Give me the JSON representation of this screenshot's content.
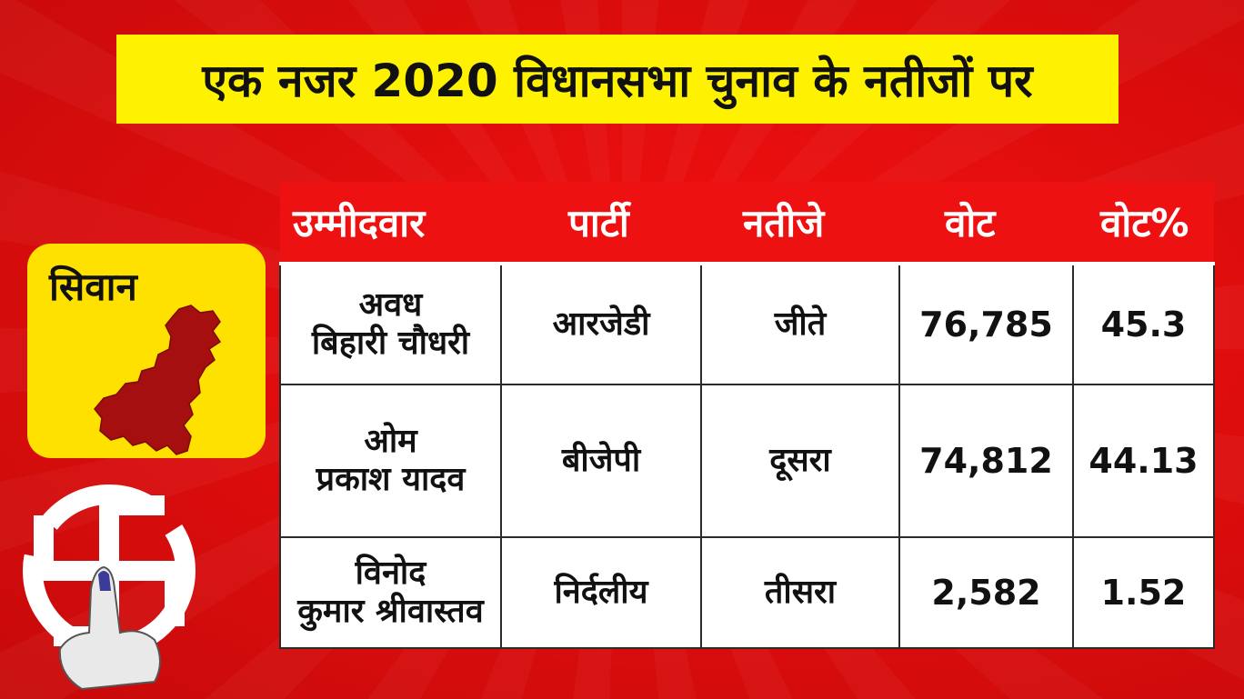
{
  "headline": "एक नजर 2020 विधानसभा चुनाव के नतीजों पर",
  "district": {
    "name": "सिवान",
    "map_icon": "district-map-icon",
    "color": "#ffe100"
  },
  "symbol": {
    "icon": "swastika-ink-finger-icon"
  },
  "colors": {
    "background": "#e30d0d",
    "header_bar": "#ee1111",
    "headline_bg": "#fff200"
  },
  "table": {
    "headers": [
      "उम्मीदवार",
      "पार्टी",
      "नतीजे",
      "वोट",
      "वोट%"
    ],
    "rows": [
      {
        "candidate_line1": "अवध",
        "candidate_line2": "बिहारी चौधरी",
        "party": "आरजेडी",
        "result": "जीते",
        "votes": "76,785",
        "vote_pct": "45.3"
      },
      {
        "candidate_line1": "ओम",
        "candidate_line2": "प्रकाश यादव",
        "party": "बीजेपी",
        "result": "दूसरा",
        "votes": "74,812",
        "vote_pct": "44.13"
      },
      {
        "candidate_line1": "विनोद",
        "candidate_line2": "कुमार श्रीवास्तव",
        "party": "निर्दलीय",
        "result": "तीसरा",
        "votes": "2,582",
        "vote_pct": "1.52"
      }
    ]
  }
}
